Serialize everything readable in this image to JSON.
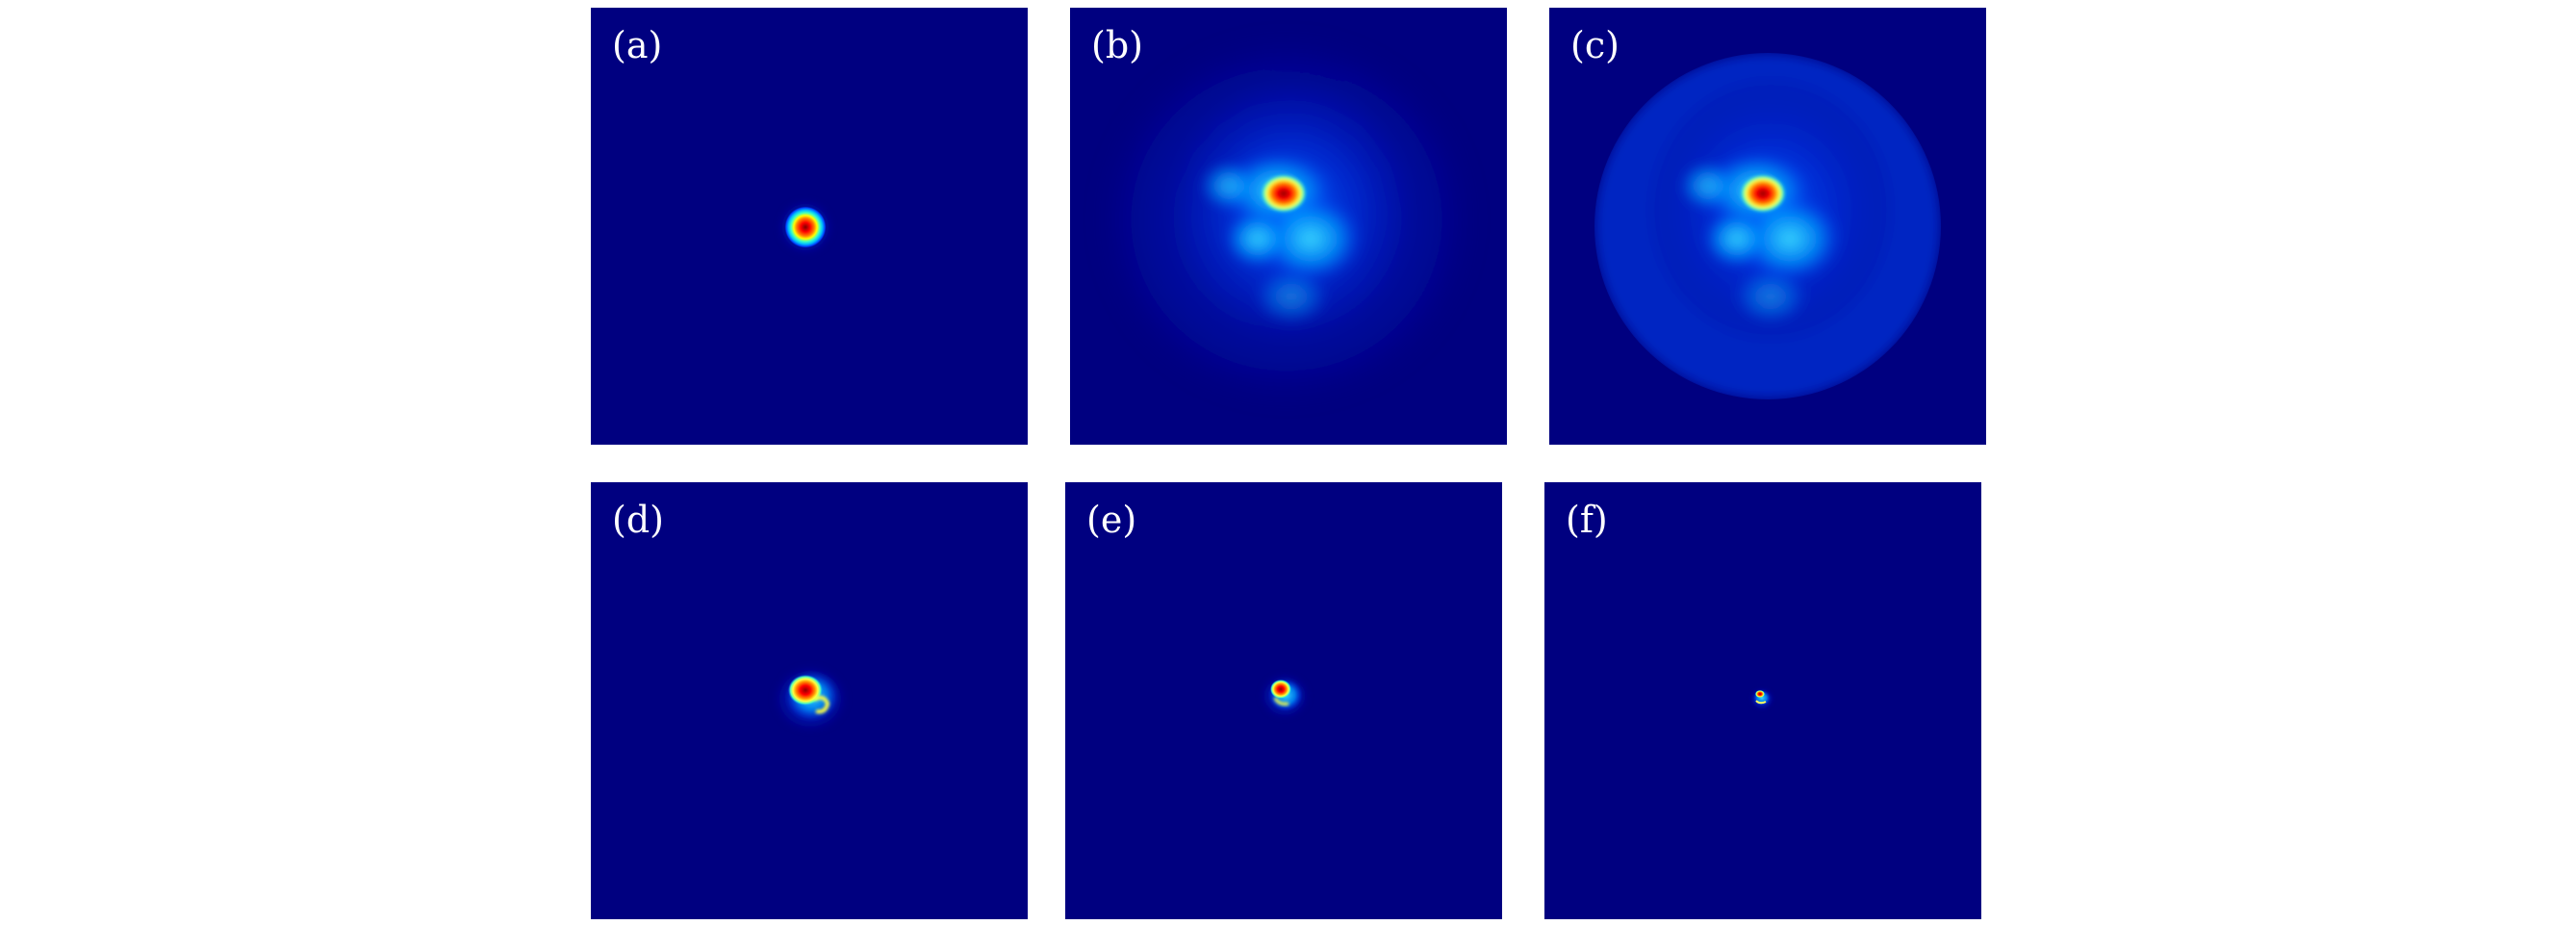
{
  "figure": {
    "colormap": [
      "#00008f",
      "#0000ff",
      "#00a0ff",
      "#00ffff",
      "#7fff7f",
      "#ffff00",
      "#ff7f00",
      "#ff0000",
      "#800000"
    ],
    "background_color": "#000080",
    "panels": [
      {
        "id": "a",
        "label": "(a)",
        "description_icon": "gaussian-spot-icon"
      },
      {
        "id": "b",
        "label": "(b)",
        "description_icon": "scattered-speckle-icon"
      },
      {
        "id": "c",
        "label": "(c)",
        "description_icon": "clipped-speckle-icon"
      },
      {
        "id": "d",
        "label": "(d)",
        "description_icon": "focused-spot-icon"
      },
      {
        "id": "e",
        "label": "(e)",
        "description_icon": "focused-spot-icon"
      },
      {
        "id": "f",
        "label": "(f)",
        "description_icon": "focused-spot-icon"
      }
    ]
  }
}
